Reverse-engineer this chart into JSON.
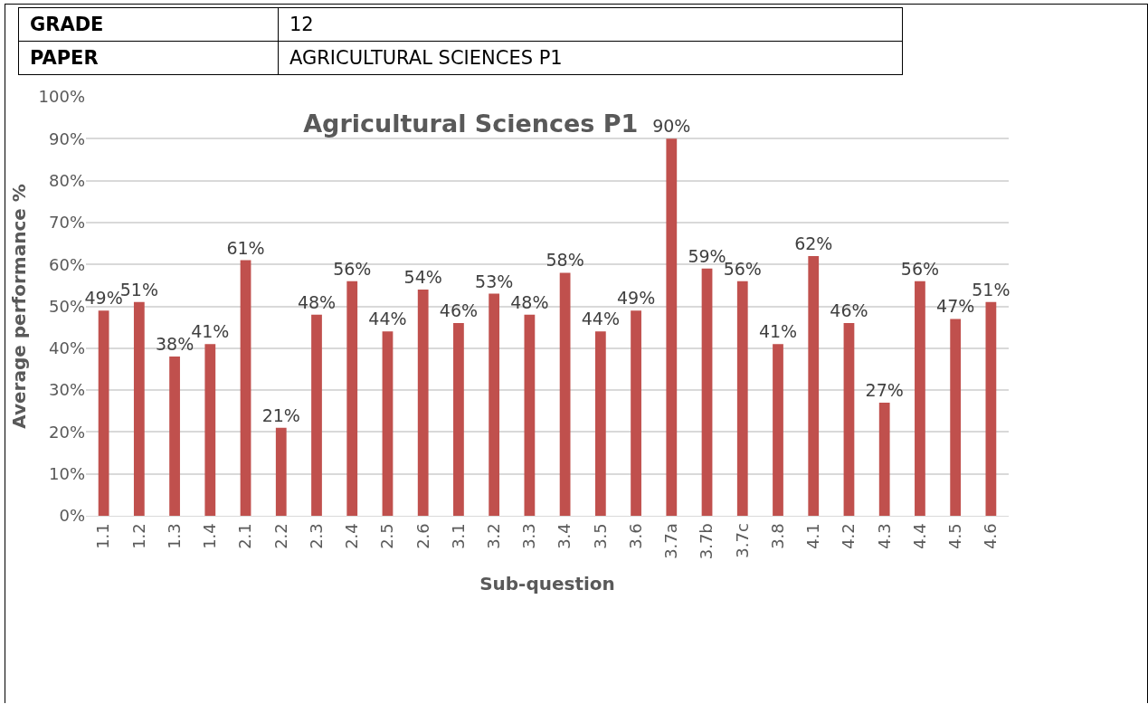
{
  "chart_data": {
    "type": "bar",
    "title": "Agricultural Sciences P1",
    "xlabel": "Sub-question",
    "ylabel": "Average performance %",
    "annotations": [
      "GRADE",
      "12",
      "PAPER",
      "AGRICULTURAL SCIENCES P1"
    ],
    "categories": [
      "1.1",
      "1.2",
      "1.3",
      "1.4",
      "2.1",
      "2.2",
      "2.3",
      "2.4",
      "2.5",
      "2.6",
      "3.1",
      "3.2",
      "3.3",
      "3.4",
      "3.5",
      "3.6",
      "3.7a",
      "3.7b",
      "3.7c",
      "3.8",
      "4.1",
      "4.2",
      "4.3",
      "4.4",
      "4.5",
      "4.6"
    ],
    "values": [
      49,
      51,
      38,
      41,
      61,
      21,
      48,
      56,
      44,
      54,
      46,
      53,
      48,
      58,
      44,
      49,
      90,
      59,
      56,
      41,
      62,
      46,
      27,
      56,
      47,
      51
    ],
    "value_labels": [
      "49%",
      "51%",
      "38%",
      "41%",
      "61%",
      "21%",
      "48%",
      "56%",
      "44%",
      "54%",
      "46%",
      "53%",
      "48%",
      "58%",
      "44%",
      "49%",
      "90%",
      "59%",
      "56%",
      "41%",
      "62%",
      "46%",
      "27%",
      "56%",
      "47%",
      "51%"
    ],
    "color": "#c0504d",
    "ylim": [
      0,
      100
    ],
    "yticks": [
      {
        "value": 0,
        "label": "0%"
      },
      {
        "value": 10,
        "label": "10%"
      },
      {
        "value": 20,
        "label": "20%"
      },
      {
        "value": 30,
        "label": "30%"
      },
      {
        "value": 40,
        "label": "40%"
      },
      {
        "value": 50,
        "label": "50%"
      },
      {
        "value": 60,
        "label": "60%"
      },
      {
        "value": 70,
        "label": "70%"
      },
      {
        "value": 80,
        "label": "80%"
      },
      {
        "value": 90,
        "label": "90%"
      },
      {
        "value": 100,
        "label": "100%"
      }
    ],
    "grid": "y"
  }
}
